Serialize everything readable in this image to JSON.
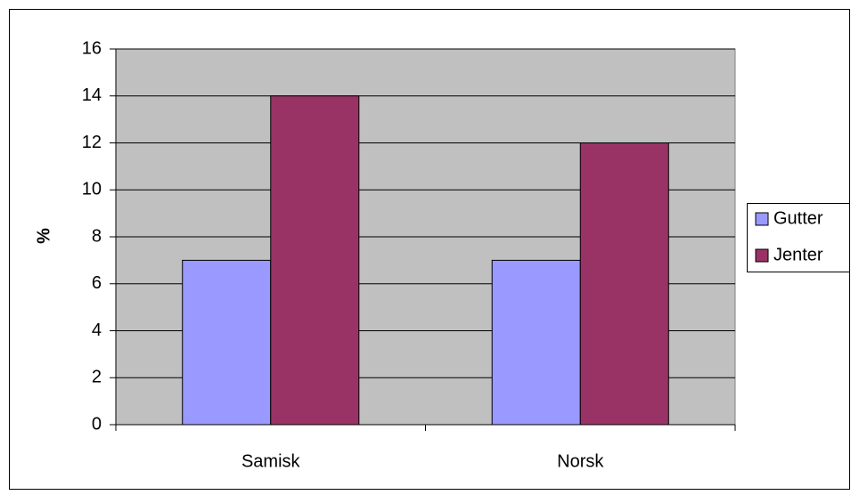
{
  "chart_data": {
    "type": "bar",
    "y_label": "%",
    "categories": [
      "Samisk",
      "Norsk"
    ],
    "series": [
      {
        "name": "Gutter",
        "color": "#9999ff",
        "values": [
          7,
          7
        ]
      },
      {
        "name": "Jenter",
        "color": "#993366",
        "values": [
          14,
          12
        ]
      }
    ],
    "ylim": [
      0,
      16
    ],
    "yticks": [
      0,
      2,
      4,
      6,
      8,
      10,
      12,
      14,
      16
    ],
    "grid": true,
    "legend": "right"
  }
}
